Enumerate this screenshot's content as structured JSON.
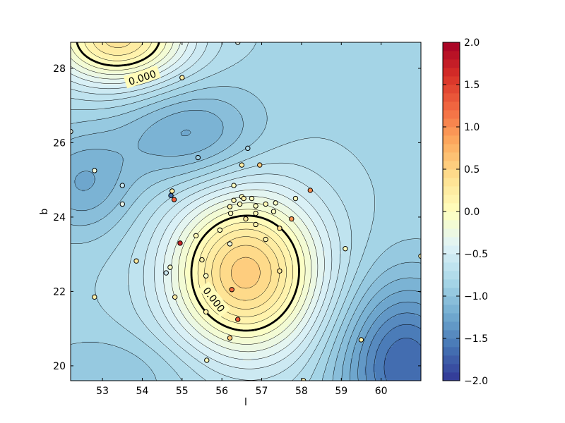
{
  "chart_data": {
    "type": "contour",
    "title": "",
    "xlabel": "l",
    "ylabel": "b",
    "xlim": [
      52.2,
      61.0
    ],
    "ylim": [
      19.6,
      28.7
    ],
    "xticks": [
      "53",
      "54",
      "55",
      "56",
      "57",
      "58",
      "59",
      "60"
    ],
    "yticks": [
      "20",
      "22",
      "24",
      "26",
      "28"
    ],
    "colorbar": {
      "colormap": "RdYlBu_r",
      "range": [
        -2.0,
        2.0
      ],
      "ticks": [
        "−2.0",
        "−1.5",
        "−1.0",
        "−0.5",
        "0.0",
        "0.5",
        "1.0",
        "1.5",
        "2.0"
      ]
    },
    "contour_labels": [
      "0.000",
      "0.000"
    ],
    "field_features": [
      {
        "kind": "max",
        "l": 56.6,
        "b": 22.5,
        "value": 0.55
      },
      {
        "kind": "max",
        "l": 53.4,
        "b": 28.8,
        "value": 0.35
      },
      {
        "kind": "min",
        "l": 55.2,
        "b": 26.2,
        "value": -1.25
      },
      {
        "kind": "min",
        "l": 60.6,
        "b": 20.0,
        "value": -1.7
      },
      {
        "kind": "min",
        "l": 52.5,
        "b": 24.9,
        "value": -1.2
      },
      {
        "kind": "min",
        "l": 53.3,
        "b": 19.8,
        "value": -1.0
      }
    ],
    "points": [
      {
        "l": 56.4,
        "b": 28.7,
        "v": -0.3
      },
      {
        "l": 55.0,
        "b": 27.75,
        "v": 0.25
      },
      {
        "l": 52.2,
        "b": 26.3,
        "v": -0.3
      },
      {
        "l": 52.8,
        "b": 25.25,
        "v": -0.2
      },
      {
        "l": 53.5,
        "b": 24.85,
        "v": -0.6
      },
      {
        "l": 53.5,
        "b": 24.35,
        "v": -0.3
      },
      {
        "l": 55.4,
        "b": 25.6,
        "v": -0.9
      },
      {
        "l": 56.65,
        "b": 25.85,
        "v": -0.8
      },
      {
        "l": 56.5,
        "b": 25.4,
        "v": 0.2
      },
      {
        "l": 56.95,
        "b": 25.4,
        "v": 0.55
      },
      {
        "l": 54.75,
        "b": 24.7,
        "v": 0.25
      },
      {
        "l": 54.72,
        "b": 24.58,
        "v": -1.6
      },
      {
        "l": 54.8,
        "b": 24.47,
        "v": 1.3
      },
      {
        "l": 56.3,
        "b": 24.85,
        "v": 0.0
      },
      {
        "l": 56.5,
        "b": 24.55,
        "v": 0.05
      },
      {
        "l": 56.55,
        "b": 24.5,
        "v": 0.2
      },
      {
        "l": 56.75,
        "b": 24.5,
        "v": 0.0
      },
      {
        "l": 56.3,
        "b": 24.45,
        "v": 0.1
      },
      {
        "l": 56.45,
        "b": 24.35,
        "v": 0.05
      },
      {
        "l": 56.2,
        "b": 24.28,
        "v": 0.2
      },
      {
        "l": 56.85,
        "b": 24.3,
        "v": 0.0
      },
      {
        "l": 57.1,
        "b": 24.35,
        "v": 0.1
      },
      {
        "l": 57.35,
        "b": 24.38,
        "v": -0.05
      },
      {
        "l": 56.22,
        "b": 24.1,
        "v": 0.0
      },
      {
        "l": 56.85,
        "b": 24.1,
        "v": 0.1
      },
      {
        "l": 57.3,
        "b": 24.15,
        "v": 0.0
      },
      {
        "l": 56.6,
        "b": 23.95,
        "v": 0.3
      },
      {
        "l": 57.85,
        "b": 24.5,
        "v": 0.0
      },
      {
        "l": 58.22,
        "b": 24.72,
        "v": 1.0
      },
      {
        "l": 57.75,
        "b": 23.95,
        "v": 0.95
      },
      {
        "l": 56.85,
        "b": 23.8,
        "v": 0.15
      },
      {
        "l": 57.45,
        "b": 23.7,
        "v": 0.45
      },
      {
        "l": 55.95,
        "b": 23.65,
        "v": 0.0
      },
      {
        "l": 55.35,
        "b": 23.5,
        "v": 0.1
      },
      {
        "l": 57.1,
        "b": 23.4,
        "v": 0.15
      },
      {
        "l": 56.2,
        "b": 23.28,
        "v": -0.2
      },
      {
        "l": 54.95,
        "b": 23.3,
        "v": 1.7
      },
      {
        "l": 55.5,
        "b": 22.85,
        "v": 0.15
      },
      {
        "l": 53.85,
        "b": 22.82,
        "v": 0.3
      },
      {
        "l": 54.7,
        "b": 22.65,
        "v": -0.05
      },
      {
        "l": 54.6,
        "b": 22.5,
        "v": -0.55
      },
      {
        "l": 57.45,
        "b": 22.55,
        "v": 0.35
      },
      {
        "l": 55.6,
        "b": 22.42,
        "v": -0.05
      },
      {
        "l": 56.25,
        "b": 22.05,
        "v": 1.2
      },
      {
        "l": 54.82,
        "b": 21.85,
        "v": 0.2
      },
      {
        "l": 55.6,
        "b": 21.45,
        "v": 0.15
      },
      {
        "l": 52.8,
        "b": 21.85,
        "v": 0.2
      },
      {
        "l": 56.4,
        "b": 21.25,
        "v": 1.3
      },
      {
        "l": 56.2,
        "b": 20.75,
        "v": 0.6
      },
      {
        "l": 59.1,
        "b": 23.15,
        "v": 0.0
      },
      {
        "l": 59.5,
        "b": 20.7,
        "v": 0.15
      },
      {
        "l": 61.0,
        "b": 22.95,
        "v": 0.1
      },
      {
        "l": 55.62,
        "b": 20.15,
        "v": 0.0
      },
      {
        "l": 58.05,
        "b": 19.6,
        "v": 0.1
      }
    ]
  }
}
